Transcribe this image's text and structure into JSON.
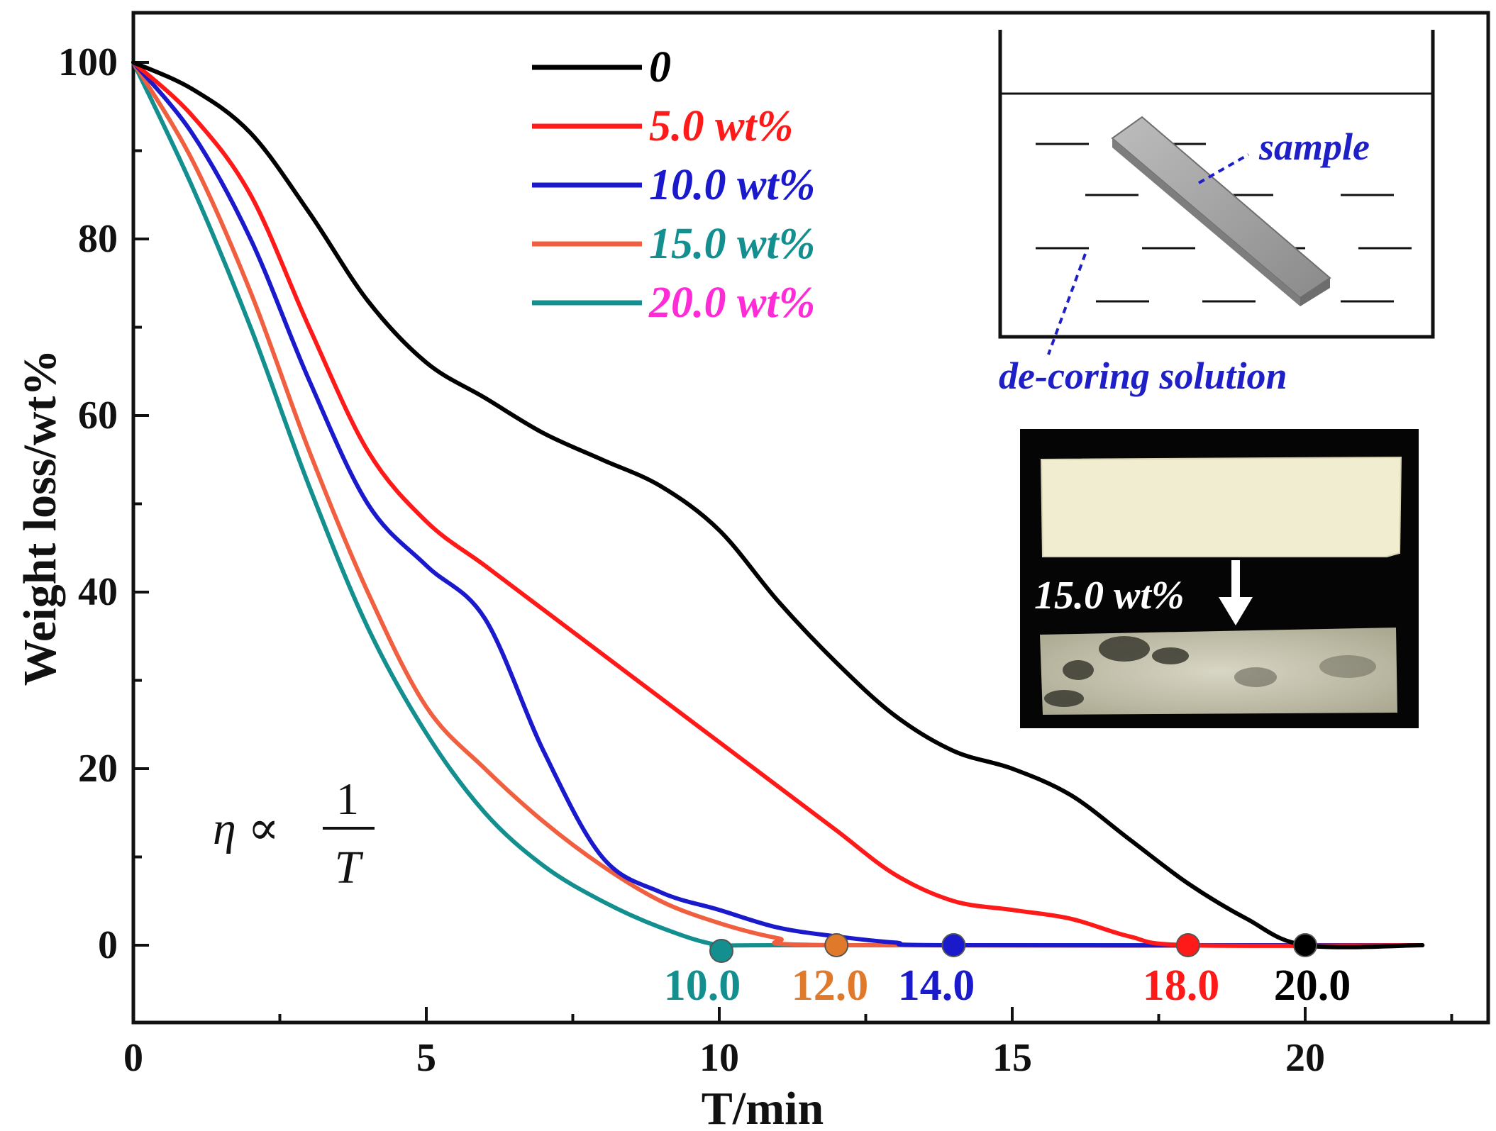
{
  "chart_data": {
    "type": "line",
    "xlabel": "T/min",
    "ylabel": "Weight loss/wt%",
    "xlim": [
      0,
      22.5
    ],
    "ylim": [
      -9,
      105
    ],
    "xticks": [
      0,
      5,
      10,
      15,
      20
    ],
    "yticks": [
      0,
      20,
      40,
      60,
      80,
      100
    ],
    "series": [
      {
        "name": "0",
        "color": "#000000",
        "label_color": "#000000",
        "x": [
          0,
          1,
          2,
          3,
          4,
          5,
          6,
          7,
          8,
          9,
          10,
          11,
          12,
          13,
          14,
          15,
          16,
          17,
          18,
          19,
          20,
          22
        ],
        "y": [
          100,
          97,
          92,
          83,
          73,
          66,
          62,
          58,
          55,
          52,
          47,
          39,
          32,
          26,
          22,
          20,
          17,
          12,
          7,
          3,
          0,
          0
        ]
      },
      {
        "name": "5.0  wt%",
        "color": "#ff1a1a",
        "label_color": "#ff1a1a",
        "x": [
          0,
          1,
          2,
          3,
          4,
          5,
          6,
          7,
          8,
          9,
          10,
          11,
          12,
          13,
          14,
          15,
          16,
          17,
          18,
          22
        ],
        "y": [
          100,
          94,
          85,
          70,
          56,
          48,
          43,
          38,
          33,
          28,
          23,
          18,
          13,
          8,
          5,
          4,
          3,
          1,
          0,
          0
        ]
      },
      {
        "name": "10.0 wt%",
        "color": "#1a1acc",
        "label_color": "#1a1acc",
        "x": [
          0,
          1,
          2,
          3,
          4,
          5,
          6,
          7,
          8,
          9,
          10,
          11,
          12,
          13,
          14,
          22
        ],
        "y": [
          100,
          92,
          80,
          64,
          50,
          43,
          37,
          22,
          10,
          6,
          4,
          2,
          1,
          0.3,
          0,
          0
        ]
      },
      {
        "name": "15.0 wt%",
        "color": "#f06040",
        "label_color": "#138f8f",
        "x": [
          0,
          1,
          2,
          3,
          4,
          5,
          6,
          7,
          8,
          9,
          10,
          11,
          12,
          22
        ],
        "y": [
          100,
          89,
          74,
          56,
          40,
          27,
          20,
          14,
          9,
          5,
          2.5,
          0.8,
          0,
          0
        ]
      },
      {
        "name": "20.0 wt%",
        "color": "#138f8f",
        "label_color": "#ff2bd6",
        "x": [
          0,
          1,
          2,
          3,
          4,
          5,
          6,
          7,
          8,
          9,
          10,
          11,
          22
        ],
        "y": [
          100,
          86,
          70,
          52,
          36,
          24,
          15,
          9,
          5,
          2,
          0,
          0,
          0
        ]
      }
    ],
    "end_points": [
      {
        "x": 10.0,
        "label": "10.0",
        "color": "#138f8f"
      },
      {
        "x": 12.0,
        "label": "12.0",
        "color": "#e07a2a"
      },
      {
        "x": 14.0,
        "label": "14.0",
        "color": "#1a1acc"
      },
      {
        "x": 18.0,
        "label": "18.0",
        "color": "#ff1a1a"
      },
      {
        "x": 20.0,
        "label": "20.0",
        "color": "#000000"
      }
    ]
  },
  "annotations": {
    "formula_symbol": "η ∝",
    "formula_numerator": "1",
    "formula_denominator": "T",
    "inset_sample_label": "sample",
    "inset_solution_label": "de-coring solution",
    "photo_label": "15.0 wt%"
  }
}
